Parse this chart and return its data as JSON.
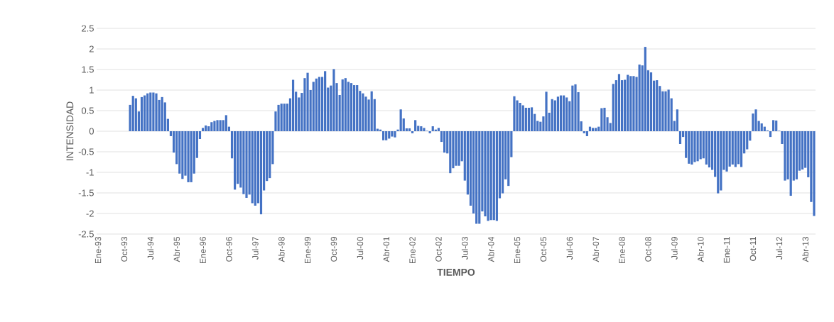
{
  "chart_data": {
    "type": "bar",
    "xlabel": "TIEMPO",
    "ylabel": "INTENSIDAD",
    "categories": [
      "Ene-93",
      null,
      null,
      null,
      null,
      null,
      null,
      null,
      null,
      "Oct-93",
      null,
      null,
      null,
      null,
      null,
      null,
      null,
      null,
      "Jul-94",
      null,
      null,
      null,
      null,
      null,
      null,
      null,
      null,
      "Abr-95",
      null,
      null,
      null,
      null,
      null,
      null,
      null,
      null,
      "Ene-96",
      null,
      null,
      null,
      null,
      null,
      null,
      null,
      null,
      "Oct-96",
      null,
      null,
      null,
      null,
      null,
      null,
      null,
      null,
      "Jul-97",
      null,
      null,
      null,
      null,
      null,
      null,
      null,
      null,
      "Abr-98",
      null,
      null,
      null,
      null,
      null,
      null,
      null,
      null,
      "Ene-99",
      null,
      null,
      null,
      null,
      null,
      null,
      null,
      null,
      "Oct-99",
      null,
      null,
      null,
      null,
      null,
      null,
      null,
      null,
      "Jul-00",
      null,
      null,
      null,
      null,
      null,
      null,
      null,
      null,
      "Abr-01",
      null,
      null,
      null,
      null,
      null,
      null,
      null,
      null,
      "Ene-02",
      null,
      null,
      null,
      null,
      null,
      null,
      null,
      null,
      "Oct-02",
      null,
      null,
      null,
      null,
      null,
      null,
      null,
      null,
      "Jul-03",
      null,
      null,
      null,
      null,
      null,
      null,
      null,
      null,
      "Abr-04",
      null,
      null,
      null,
      null,
      null,
      null,
      null,
      null,
      "Ene-05",
      null,
      null,
      null,
      null,
      null,
      null,
      null,
      null,
      "Oct-05",
      null,
      null,
      null,
      null,
      null,
      null,
      null,
      null,
      "Jul-06",
      null,
      null,
      null,
      null,
      null,
      null,
      null,
      null,
      "Abr-07",
      null,
      null,
      null,
      null,
      null,
      null,
      null,
      null,
      "Ene-08",
      null,
      null,
      null,
      null,
      null,
      null,
      null,
      null,
      "Oct-08",
      null,
      null,
      null,
      null,
      null,
      null,
      null,
      null,
      "Jul-09",
      null,
      null,
      null,
      null,
      null,
      null,
      null,
      null,
      "Abr-10",
      null,
      null,
      null,
      null,
      null,
      null,
      null,
      null,
      "Ene-11",
      null,
      null,
      null,
      null,
      null,
      null,
      null,
      null,
      "Oct-11",
      null,
      null,
      null,
      null,
      null,
      null,
      null,
      null,
      "Jul-12",
      null,
      null,
      null,
      null,
      null,
      null,
      null,
      null,
      "Abr-13",
      null,
      null,
      null
    ],
    "values": [
      null,
      null,
      null,
      null,
      null,
      null,
      null,
      null,
      null,
      null,
      null,
      0.64,
      0.86,
      0.8,
      0.48,
      0.83,
      0.87,
      0.92,
      0.94,
      0.94,
      0.92,
      0.76,
      0.83,
      0.7,
      0.3,
      -0.12,
      -0.52,
      -0.8,
      -1.03,
      -1.16,
      -1.08,
      -1.24,
      -1.24,
      -1.03,
      -0.65,
      -0.19,
      0.08,
      0.14,
      0.12,
      0.22,
      0.25,
      0.27,
      0.27,
      0.27,
      0.39,
      0.11,
      -0.66,
      -1.42,
      -1.28,
      -1.37,
      -1.53,
      -1.62,
      -1.54,
      -1.75,
      -1.81,
      -1.75,
      -2.02,
      -1.44,
      -1.21,
      -1.14,
      -0.8,
      0.48,
      0.64,
      0.67,
      0.67,
      0.67,
      0.8,
      1.25,
      0.96,
      0.82,
      0.93,
      1.29,
      1.42,
      1.0,
      1.2,
      1.28,
      1.32,
      1.32,
      1.46,
      1.06,
      1.11,
      1.51,
      1.17,
      0.88,
      1.26,
      1.29,
      1.2,
      1.17,
      1.12,
      1.12,
      0.98,
      0.92,
      0.84,
      0.77,
      0.97,
      0.78,
      0.06,
      0.04,
      -0.22,
      -0.22,
      -0.18,
      -0.13,
      -0.15,
      0.04,
      0.53,
      0.31,
      0.07,
      0.07,
      -0.05,
      0.27,
      0.13,
      0.12,
      0.08,
      0.01,
      -0.05,
      0.12,
      0.04,
      0.08,
      -0.26,
      -0.52,
      -0.54,
      -1.02,
      -0.9,
      -0.84,
      -0.84,
      -0.73,
      -1.2,
      -1.54,
      -1.81,
      -2.0,
      -2.25,
      -2.25,
      -1.95,
      -2.07,
      -2.18,
      -2.16,
      -2.16,
      -2.18,
      -1.63,
      -1.51,
      -1.17,
      -1.33,
      -0.63,
      0.85,
      0.75,
      0.69,
      0.63,
      0.57,
      0.57,
      0.58,
      0.42,
      0.25,
      0.23,
      0.36,
      0.96,
      0.45,
      0.78,
      0.75,
      0.84,
      0.87,
      0.87,
      0.82,
      0.73,
      1.11,
      1.14,
      0.95,
      0.24,
      -0.05,
      -0.12,
      0.11,
      0.08,
      0.08,
      0.11,
      0.56,
      0.57,
      0.34,
      0.2,
      1.15,
      1.24,
      1.39,
      1.24,
      1.25,
      1.37,
      1.34,
      1.34,
      1.32,
      1.62,
      1.6,
      2.05,
      1.48,
      1.43,
      1.23,
      1.24,
      1.1,
      0.97,
      0.97,
      1.01,
      0.8,
      0.25,
      0.53,
      -0.31,
      -0.14,
      -0.65,
      -0.79,
      -0.81,
      -0.75,
      -0.73,
      -0.68,
      -0.66,
      -0.81,
      -0.88,
      -0.94,
      -1.11,
      -1.51,
      -1.44,
      -0.94,
      -0.98,
      -0.86,
      -0.81,
      -0.87,
      -0.8,
      -0.87,
      -0.54,
      -0.44,
      -0.23,
      0.43,
      0.53,
      0.25,
      0.19,
      0.11,
      0.02,
      -0.14,
      0.27,
      0.26,
      0.01,
      -0.31,
      -1.2,
      -1.17,
      -1.57,
      -1.2,
      -1.17,
      -0.96,
      -0.93,
      -0.89,
      -1.12,
      -1.72,
      -2.06
    ],
    "color": "#4472c4",
    "ylim": [
      -2.5,
      2.5
    ],
    "yticks": [
      -2.5,
      -2,
      -1.5,
      -1,
      -0.5,
      0,
      0.5,
      1,
      1.5,
      2,
      2.5
    ],
    "grid": "y"
  }
}
